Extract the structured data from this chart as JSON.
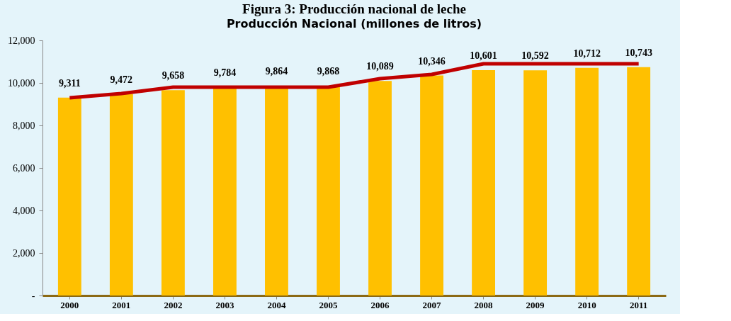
{
  "chart_data": {
    "type": "bar",
    "title": "Figura 3: Producción nacional de leche",
    "subtitle": "Producción Nacional (millones de litros)",
    "categories": [
      "2000",
      "2001",
      "2002",
      "2003",
      "2004",
      "2005",
      "2006",
      "2007",
      "2008",
      "2009",
      "2010",
      "2011"
    ],
    "series": [
      {
        "color": "#ffc000",
        "values": [
          9311,
          9472,
          9658,
          9784,
          9864,
          9868,
          10089,
          10346,
          10601,
          10592,
          10712,
          10743
        ],
        "value_labels": [
          "9,311",
          "9,472",
          "9,658",
          "9,784",
          "9,864",
          "9,868",
          "10,089",
          "10,346",
          "10,601",
          "10,592",
          "10,712",
          "10,743"
        ]
      },
      {
        "type": "line",
        "color": "#c00000",
        "values": [
          9300,
          9500,
          9800,
          9800,
          9800,
          9800,
          10200,
          10400,
          10900,
          10900,
          10900,
          10900
        ]
      }
    ],
    "ylim": [
      0,
      12000
    ],
    "yticks": [
      {
        "value": 0,
        "label": "-"
      },
      {
        "value": 2000,
        "label": "2,000"
      },
      {
        "value": 4000,
        "label": "4,000"
      },
      {
        "value": 6000,
        "label": "6,000"
      },
      {
        "value": 8000,
        "label": "8,000"
      },
      {
        "value": 10000,
        "label": "10,000"
      },
      {
        "value": 12000,
        "label": "12,000"
      }
    ],
    "grid": false,
    "legend": false
  }
}
